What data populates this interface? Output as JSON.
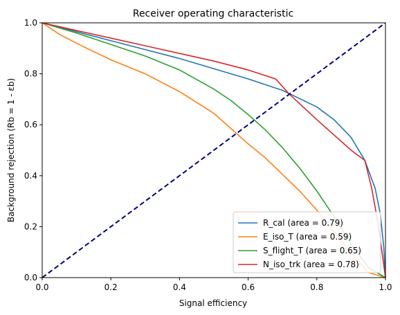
{
  "chart_data": {
    "type": "line",
    "title": "Receiver operating characteristic",
    "xlabel": "Signal efficiency",
    "ylabel": "Background rejection (Rb = 1 - εb)",
    "xlim": [
      0,
      1
    ],
    "ylim": [
      0,
      1
    ],
    "xticks": [
      "0.0",
      "0.2",
      "0.4",
      "0.6",
      "0.8",
      "1.0"
    ],
    "yticks": [
      "0.0",
      "0.2",
      "0.4",
      "0.6",
      "0.8",
      "1.0"
    ],
    "grid": false,
    "legend_position": "lower-right",
    "series": [
      {
        "name": "R_cal (area = 0.79)",
        "color": "#1f77b4",
        "x": [
          0,
          0.1,
          0.2,
          0.3,
          0.4,
          0.5,
          0.6,
          0.7,
          0.8,
          0.85,
          0.9,
          0.94,
          0.97,
          0.985,
          0.995,
          1.0
        ],
        "y": [
          1.0,
          0.965,
          0.93,
          0.895,
          0.86,
          0.82,
          0.78,
          0.735,
          0.67,
          0.62,
          0.55,
          0.46,
          0.35,
          0.25,
          0.12,
          0.0
        ]
      },
      {
        "name": "E_iso_T (area = 0.59)",
        "color": "#ff7f0e",
        "x": [
          0,
          0.05,
          0.1,
          0.13,
          0.2,
          0.3,
          0.4,
          0.5,
          0.6,
          0.65,
          0.7,
          0.75,
          0.8,
          0.85,
          0.9,
          0.95,
          1.0
        ],
        "y": [
          1.0,
          0.955,
          0.92,
          0.9,
          0.855,
          0.8,
          0.73,
          0.645,
          0.525,
          0.47,
          0.405,
          0.34,
          0.265,
          0.18,
          0.095,
          0.02,
          0.0
        ]
      },
      {
        "name": "S_flight_T (area = 0.65)",
        "color": "#2ca02c",
        "x": [
          0,
          0.1,
          0.2,
          0.3,
          0.4,
          0.5,
          0.55,
          0.6,
          0.65,
          0.7,
          0.75,
          0.8,
          0.85,
          0.9,
          0.95,
          1.0
        ],
        "y": [
          1.0,
          0.96,
          0.915,
          0.87,
          0.815,
          0.74,
          0.695,
          0.64,
          0.58,
          0.51,
          0.43,
          0.34,
          0.24,
          0.13,
          0.04,
          0.0
        ]
      },
      {
        "name": "N_iso_trk (area = 0.78)",
        "color": "#d62728",
        "x": [
          0,
          0.1,
          0.2,
          0.3,
          0.4,
          0.5,
          0.6,
          0.68,
          0.72,
          0.8,
          0.9,
          0.94,
          0.96,
          0.98,
          1.0
        ],
        "y": [
          1.0,
          0.97,
          0.94,
          0.91,
          0.88,
          0.85,
          0.815,
          0.78,
          0.72,
          0.62,
          0.5,
          0.46,
          0.35,
          0.2,
          0.0
        ]
      },
      {
        "name": "",
        "color": "#000080",
        "dashed": true,
        "show_in_legend": false,
        "x": [
          0,
          1
        ],
        "y": [
          0,
          1
        ]
      }
    ]
  }
}
